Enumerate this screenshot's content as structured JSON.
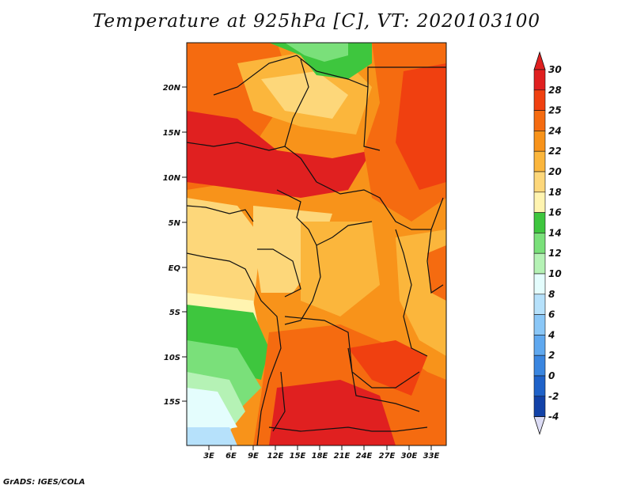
{
  "title": "Temperature at 925hPa [C], VT: 2020103100",
  "footer": "GrADS: IGES/COLA",
  "map": {
    "lat_ticks": [
      "20N",
      "15N",
      "10N",
      "5N",
      "EQ",
      "5S",
      "10S",
      "15S"
    ],
    "lon_ticks": [
      "3E",
      "6E",
      "9E",
      "12E",
      "15E",
      "18E",
      "21E",
      "24E",
      "27E",
      "30E",
      "33E"
    ]
  },
  "colorbar": {
    "labels": [
      "30",
      "28",
      "25",
      "24",
      "22",
      "20",
      "18",
      "16",
      "14",
      "12",
      "10",
      "8",
      "6",
      "4",
      "2",
      "0",
      "-2",
      "-4"
    ],
    "colors": [
      "#e02020",
      "#f04010",
      "#f56b10",
      "#f8931a",
      "#fbb63c",
      "#fdd77a",
      "#fff4b0",
      "#3ec63e",
      "#7ae07a",
      "#b5f2b5",
      "#e4fdfd",
      "#b6e1fb",
      "#8ac7f7",
      "#5fa8ef",
      "#3a86e0",
      "#1f62c9",
      "#1242a8",
      "#0a1a7a"
    ]
  },
  "colors": {
    "hot": "#e02020",
    "warm": "#f56b10",
    "mild": "#fbb63c",
    "cool_green": "#3ec63e",
    "cold_cyan": "#e4fdfd"
  }
}
